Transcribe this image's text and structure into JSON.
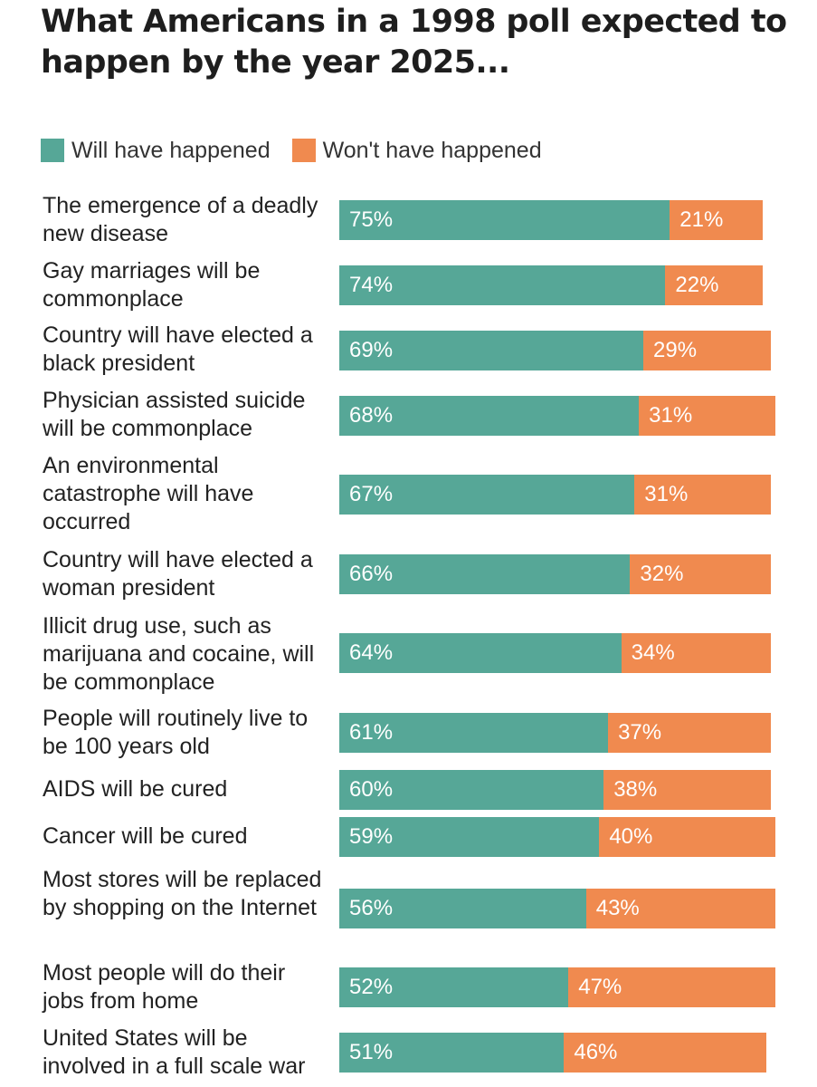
{
  "chart_data": {
    "type": "bar",
    "orientation": "horizontal",
    "stacked": true,
    "title": "What Americans in a 1998 poll expected to happen by the year 2025...",
    "legend": [
      {
        "name": "Will have happened",
        "color": "#56a797"
      },
      {
        "name": "Won't have happened",
        "color": "#f08a4f"
      }
    ],
    "categories": [
      "The emergence of a deadly new disease",
      "Gay marriages will be commonplace",
      "Country will have elected a black president",
      "Physician assisted suicide will be commonplace",
      "An environmental catastrophe will have occurred",
      "Country will have elected a woman president",
      "Illicit drug use, such as marijuana and cocaine, will be commonplace",
      "People will routinely live to be 100 years old",
      "AIDS will be cured",
      "Cancer will be cured",
      "Most stores will be replaced by shopping on the Internet",
      "Most people will do their jobs from home",
      "United States will be involved in a full scale war"
    ],
    "series": [
      {
        "name": "Will have happened",
        "values": [
          75,
          74,
          69,
          68,
          67,
          66,
          64,
          61,
          60,
          59,
          56,
          52,
          51
        ]
      },
      {
        "name": "Won't have happened",
        "values": [
          21,
          22,
          29,
          31,
          31,
          32,
          34,
          37,
          38,
          40,
          43,
          47,
          46
        ]
      }
    ],
    "value_suffix": "%",
    "xlim": [
      0,
      100
    ]
  }
}
